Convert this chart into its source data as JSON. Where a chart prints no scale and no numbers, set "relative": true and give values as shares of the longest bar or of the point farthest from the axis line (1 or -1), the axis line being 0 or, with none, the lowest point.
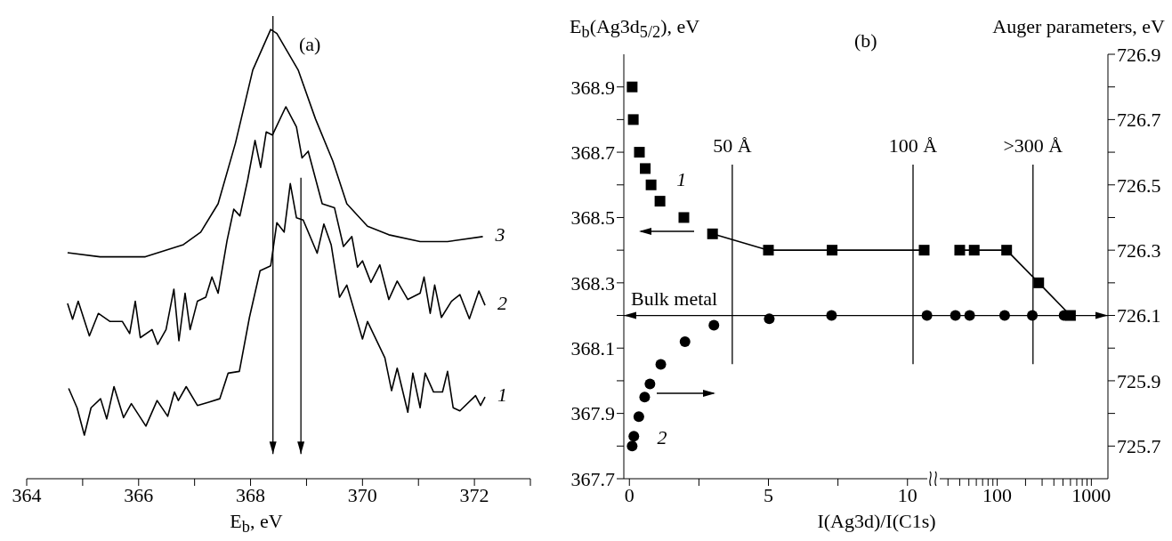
{
  "chart_data": [
    {
      "type": "line",
      "title": "(a)",
      "xlabel": "E$_{b}$, eV",
      "relative": true,
      "xlim": [
        364,
        373
      ],
      "xticks": [
        364,
        {
          "value": 365,
          "label": null
        },
        366,
        {
          "value": 367,
          "label": null
        },
        368,
        {
          "value": 369,
          "label": null
        },
        370,
        {
          "value": 371,
          "label": null
        },
        372,
        {
          "value": 373,
          "label": null
        }
      ],
      "marker": "none",
      "series": [
        {
          "name": "3",
          "color": "#000000",
          "x": [
            364.73,
            365.31,
            366.12,
            366.8,
            367.11,
            367.42,
            367.73,
            368.04,
            368.36,
            368.47,
            368.85,
            369.16,
            369.47,
            369.72,
            370.09,
            370.47,
            371.03,
            371.52,
            372.15
          ],
          "values": [
            0.503,
            0.494,
            0.494,
            0.521,
            0.549,
            0.612,
            0.747,
            0.91,
            1.0,
            0.991,
            0.91,
            0.801,
            0.707,
            0.612,
            0.562,
            0.543,
            0.528,
            0.528,
            0.539
          ]
        },
        {
          "name": "2",
          "color": "#000000",
          "x": [
            364.73,
            364.82,
            364.92,
            365.12,
            365.28,
            365.49,
            365.71,
            365.84,
            365.94,
            366.03,
            366.24,
            366.34,
            366.49,
            366.63,
            366.72,
            366.83,
            366.92,
            367.05,
            367.2,
            367.31,
            367.42,
            367.58,
            367.7,
            367.81,
            367.95,
            368.08,
            368.18,
            368.28,
            368.39,
            368.63,
            368.82,
            368.92,
            369.03,
            369.28,
            369.5,
            369.66,
            369.81,
            369.91,
            370.0,
            370.15,
            370.31,
            370.47,
            370.62,
            370.81,
            371.03,
            371.1,
            371.21,
            371.29,
            371.41,
            371.59,
            371.74,
            371.91,
            372.08,
            372.19
          ],
          "values": [
            0.39,
            0.355,
            0.395,
            0.318,
            0.368,
            0.35,
            0.35,
            0.323,
            0.395,
            0.314,
            0.332,
            0.299,
            0.332,
            0.422,
            0.307,
            0.413,
            0.332,
            0.395,
            0.404,
            0.449,
            0.413,
            0.53,
            0.6,
            0.585,
            0.666,
            0.753,
            0.693,
            0.772,
            0.765,
            0.828,
            0.783,
            0.714,
            0.729,
            0.612,
            0.603,
            0.517,
            0.539,
            0.471,
            0.485,
            0.437,
            0.476,
            0.399,
            0.44,
            0.399,
            0.413,
            0.449,
            0.368,
            0.431,
            0.359,
            0.395,
            0.41,
            0.356,
            0.418,
            0.386
          ]
        },
        {
          "name": "1",
          "color": "#000000",
          "x": [
            364.75,
            364.9,
            365.03,
            365.15,
            365.32,
            365.43,
            365.56,
            365.73,
            365.87,
            366.13,
            366.33,
            366.52,
            366.64,
            366.71,
            366.85,
            367.05,
            367.24,
            367.45,
            367.6,
            367.8,
            367.98,
            368.17,
            368.36,
            368.47,
            368.6,
            368.71,
            368.82,
            368.94,
            369.19,
            369.31,
            369.44,
            369.59,
            369.72,
            370.0,
            370.09,
            370.4,
            370.52,
            370.62,
            370.81,
            370.9,
            371.03,
            371.12,
            371.27,
            371.43,
            371.52,
            371.62,
            371.74,
            372.02,
            372.11,
            372.19
          ],
          "values": [
            0.201,
            0.158,
            0.097,
            0.158,
            0.178,
            0.133,
            0.205,
            0.136,
            0.167,
            0.117,
            0.174,
            0.139,
            0.193,
            0.174,
            0.205,
            0.163,
            0.17,
            0.178,
            0.235,
            0.239,
            0.359,
            0.463,
            0.474,
            0.57,
            0.549,
            0.657,
            0.581,
            0.576,
            0.502,
            0.567,
            0.521,
            0.404,
            0.431,
            0.311,
            0.35,
            0.269,
            0.196,
            0.246,
            0.148,
            0.235,
            0.158,
            0.235,
            0.193,
            0.193,
            0.239,
            0.158,
            0.151,
            0.185,
            0.163,
            0.182
          ]
        }
      ],
      "ref_lines": [
        {
          "axis": "x",
          "value": 368.4
        },
        {
          "axis": "x",
          "value": 368.9
        }
      ]
    },
    {
      "type": "scatter",
      "title": "(b)",
      "ylabel": "E$_{b}$(Ag3d$_{5/2}$), eV",
      "xlabel": "I(Ag3d)/I(C1s)",
      "xlim": [
        -0.2,
        11
      ],
      "xticks": [
        0,
        {
          "value": 2.5,
          "label": null
        },
        5,
        {
          "value": 7.5,
          "label": null
        },
        10
      ],
      "ylim": [
        367.7,
        369.0
      ],
      "yticks": [
        367.7,
        {
          "value": 367.8,
          "label": null
        },
        367.9,
        {
          "value": 368.0,
          "label": null
        },
        368.1,
        {
          "value": 368.2,
          "label": null
        },
        368.3,
        {
          "value": 368.4,
          "label": null
        },
        368.5,
        {
          "value": 368.6,
          "label": null
        },
        368.7,
        {
          "value": 368.8,
          "label": null
        },
        368.9
      ],
      "y2lim": [
        725.6,
        726.9
      ],
      "series": [
        {
          "name": "1",
          "color": "#000000",
          "marker": "square",
          "x": [
            0.1,
            0.14,
            0.36,
            0.57,
            0.78,
            1.1,
            1.96,
            2.99,
            5.0,
            7.29,
            10.6
          ],
          "values": [
            368.9,
            368.8,
            368.7,
            368.65,
            368.6,
            368.55,
            368.5,
            368.45,
            368.4,
            368.4,
            368.4
          ]
        },
        {
          "type": "line",
          "color": "#000000",
          "x": [
            2.99,
            5.0,
            7.29,
            10.6
          ],
          "values": [
            368.45,
            368.4,
            368.4,
            368.4
          ]
        },
        {
          "name": "2",
          "color": "#000000",
          "marker": "circle",
          "axis": "y2",
          "x": [
            0.1,
            0.16,
            0.34,
            0.55,
            0.74,
            1.13,
            2.0,
            3.04,
            5.03,
            7.27,
            10.7
          ],
          "values": [
            725.7,
            725.73,
            725.79,
            725.85,
            725.89,
            725.95,
            726.02,
            726.07,
            726.09,
            726.1,
            726.1
          ]
        }
      ],
      "ref_lines": [
        {
          "axis": "x",
          "value": 3.7,
          "label": "50 Å"
        },
        {
          "axis": "x",
          "value": 10.2,
          "label": "100 Å"
        },
        {
          "axis": "y",
          "value": 368.2,
          "label": "Bulk metal"
        }
      ]
    },
    {
      "type": "scatter",
      "y2label": "Auger parameters, eV",
      "log": "x",
      "xlim": [
        22,
        1500
      ],
      "xticks": [
        {
          "value": 30,
          "label": null
        },
        {
          "value": 40,
          "label": null
        },
        {
          "value": 50,
          "label": null
        },
        {
          "value": 60,
          "label": null
        },
        {
          "value": 70,
          "label": null
        },
        {
          "value": 80,
          "label": null
        },
        {
          "value": 90,
          "label": null
        },
        100,
        {
          "value": 200,
          "label": null
        },
        {
          "value": 300,
          "label": null
        },
        {
          "value": 400,
          "label": null
        },
        {
          "value": 500,
          "label": null
        },
        {
          "value": 600,
          "label": null
        },
        {
          "value": 700,
          "label": null
        },
        {
          "value": 800,
          "label": null
        },
        {
          "value": 900,
          "label": null
        },
        1000
      ],
      "ylim": [
        367.7,
        369.0
      ],
      "y2lim": [
        725.6,
        726.9
      ],
      "y2ticks": [
        725.7,
        {
          "value": 725.8,
          "label": null
        },
        725.9,
        {
          "value": 726.0,
          "label": null
        },
        726.1,
        {
          "value": 726.2,
          "label": null
        },
        726.3,
        {
          "value": 726.4,
          "label": null
        },
        726.5,
        {
          "value": 726.6,
          "label": null
        },
        726.7,
        {
          "value": 726.8,
          "label": null
        },
        726.9
      ],
      "series": [
        {
          "color": "#000000",
          "marker": "square",
          "x": [
            40,
            57,
            126,
            276,
            600
          ],
          "values": [
            368.4,
            368.4,
            368.4,
            368.3,
            368.2
          ]
        },
        {
          "type": "line",
          "color": "#000000",
          "x": [
            40,
            57,
            126,
            276,
            600
          ],
          "values": [
            368.4,
            368.4,
            368.4,
            368.3,
            368.2
          ]
        },
        {
          "color": "#000000",
          "marker": "circle",
          "axis": "y2",
          "x": [
            36,
            51,
            120,
            236,
            513
          ],
          "values": [
            726.1,
            726.1,
            726.1,
            726.1,
            726.1
          ]
        }
      ],
      "ref_lines": [
        {
          "axis": "x",
          "value": 240,
          "label": ">300 Å"
        },
        {
          "axis": "y2",
          "value": 726.1
        }
      ]
    }
  ]
}
